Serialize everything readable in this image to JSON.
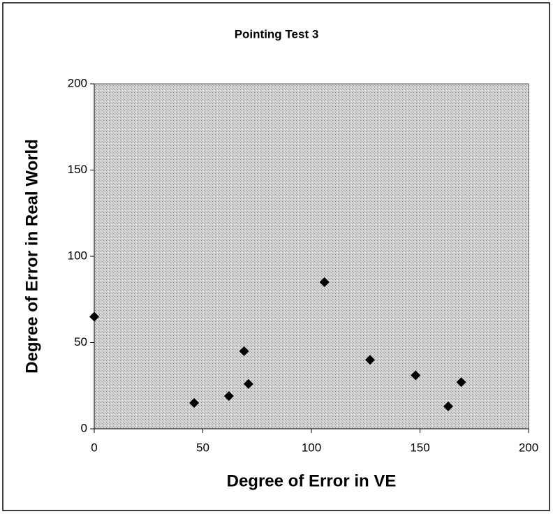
{
  "chart_data": {
    "type": "scatter",
    "title": "Pointing Test 3",
    "x_label": "Degree of Error in VE",
    "y_label": "Degree of Error in Real World",
    "x": [
      0,
      46,
      62,
      69,
      71,
      106,
      127,
      148,
      163,
      169
    ],
    "y": [
      65,
      15,
      19,
      45,
      26,
      85,
      40,
      31,
      13,
      27
    ],
    "color": "#000000",
    "xlim": [
      0,
      200
    ],
    "xticks": [
      0,
      50,
      100,
      150,
      200
    ],
    "ylim": [
      0,
      200
    ],
    "yticks": [
      0,
      50,
      100,
      150,
      200
    ]
  }
}
